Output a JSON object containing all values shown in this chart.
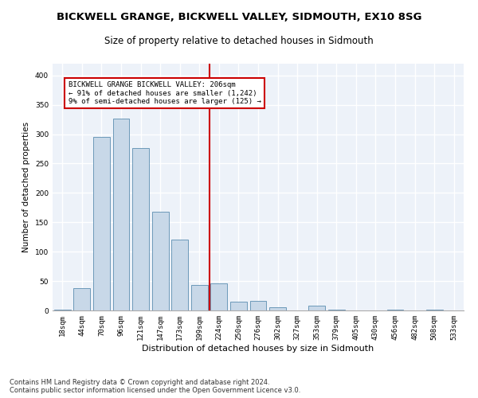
{
  "title1": "BICKWELL GRANGE, BICKWELL VALLEY, SIDMOUTH, EX10 8SG",
  "title2": "Size of property relative to detached houses in Sidmouth",
  "xlabel": "Distribution of detached houses by size in Sidmouth",
  "ylabel": "Number of detached properties",
  "categories": [
    "18sqm",
    "44sqm",
    "70sqm",
    "96sqm",
    "121sqm",
    "147sqm",
    "173sqm",
    "199sqm",
    "224sqm",
    "250sqm",
    "276sqm",
    "302sqm",
    "327sqm",
    "353sqm",
    "379sqm",
    "405sqm",
    "430sqm",
    "456sqm",
    "482sqm",
    "508sqm",
    "533sqm"
  ],
  "values": [
    2,
    38,
    296,
    326,
    276,
    168,
    120,
    43,
    46,
    15,
    16,
    6,
    0,
    8,
    2,
    0,
    0,
    2,
    0,
    2,
    0
  ],
  "bar_color": "#c8d8e8",
  "bar_edge_color": "#5b8db0",
  "bg_color": "#edf2f9",
  "grid_color": "#ffffff",
  "vline_x": 7.5,
  "vline_color": "#cc0000",
  "annotation_text": "BICKWELL GRANGE BICKWELL VALLEY: 206sqm\n← 91% of detached houses are smaller (1,242)\n9% of semi-detached houses are larger (125) →",
  "annotation_box_color": "#cc0000",
  "ylim": [
    0,
    420
  ],
  "yticks": [
    0,
    50,
    100,
    150,
    200,
    250,
    300,
    350,
    400
  ],
  "footer1": "Contains HM Land Registry data © Crown copyright and database right 2024.",
  "footer2": "Contains public sector information licensed under the Open Government Licence v3.0.",
  "title1_fontsize": 9.5,
  "title2_fontsize": 8.5,
  "ylabel_fontsize": 7.5,
  "xlabel_fontsize": 8.0,
  "tick_fontsize": 6.5,
  "ann_fontsize": 6.5,
  "footer_fontsize": 6.0
}
